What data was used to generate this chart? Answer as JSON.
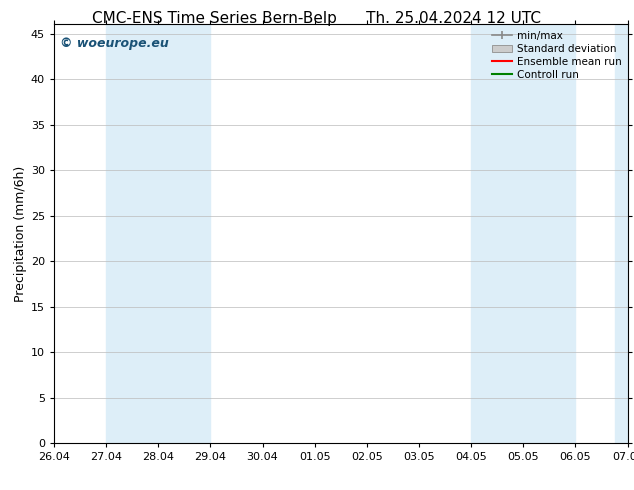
{
  "title_left": "CMC-ENS Time Series Bern-Belp",
  "title_right": "Th. 25.04.2024 12 UTC",
  "ylabel": "Precipitation (mm/6h)",
  "watermark": "© woeurope.eu",
  "xlim_start": 0,
  "xlim_end": 11,
  "ylim_min": 0,
  "ylim_max": 46,
  "yticks": [
    0,
    5,
    10,
    15,
    20,
    25,
    30,
    35,
    40,
    45
  ],
  "xtick_labels": [
    "26.04",
    "27.04",
    "28.04",
    "29.04",
    "30.04",
    "01.05",
    "02.05",
    "03.05",
    "04.05",
    "05.05",
    "06.05",
    "07.05"
  ],
  "shaded_regions": [
    {
      "xstart": 1.0,
      "xend": 3.0,
      "color": "#ddeef8"
    },
    {
      "xstart": 8.0,
      "xend": 10.0,
      "color": "#ddeef8"
    },
    {
      "xstart": 10.75,
      "xend": 11.0,
      "color": "#ddeef8"
    }
  ],
  "background_color": "#ffffff",
  "plot_bg_color": "#ffffff",
  "grid_color": "#bbbbbb",
  "legend_entries": [
    {
      "label": "min/max",
      "color": "#888888",
      "style": "errorbar"
    },
    {
      "label": "Standard deviation",
      "color": "#cccccc",
      "style": "box"
    },
    {
      "label": "Ensemble mean run",
      "color": "#ff0000",
      "style": "line"
    },
    {
      "label": "Controll run",
      "color": "#008000",
      "style": "line"
    }
  ],
  "title_fontsize": 11,
  "axis_fontsize": 9,
  "tick_fontsize": 8,
  "legend_fontsize": 7.5,
  "watermark_fontsize": 9,
  "watermark_color": "#1a5276"
}
